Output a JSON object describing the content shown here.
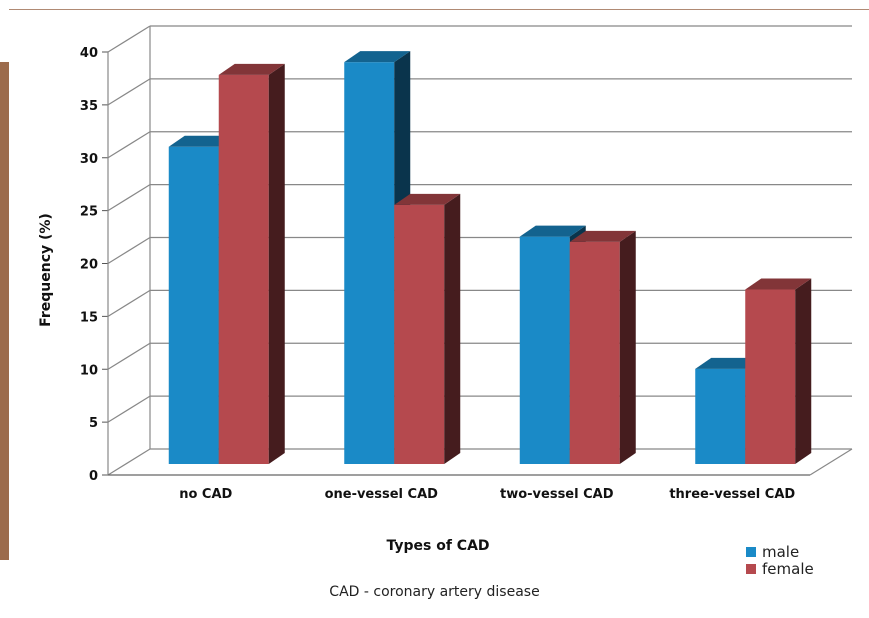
{
  "chart_data": {
    "type": "bar",
    "three_d": true,
    "categories": [
      "no CAD",
      "one-vessel CAD",
      "two-vessel CAD",
      "three-vessel CAD"
    ],
    "series": [
      {
        "name": "male",
        "values": [
          30,
          38,
          21.5,
          9
        ]
      },
      {
        "name": "female",
        "values": [
          36.8,
          24.5,
          21,
          16.5
        ]
      }
    ],
    "title": "",
    "xlabel": "Types of CAD",
    "ylabel": "Frequency (%)",
    "ylim": [
      0,
      40
    ],
    "yticks": [
      0,
      5,
      10,
      15,
      20,
      25,
      30,
      35,
      40
    ],
    "grid": true,
    "legend_position": "bottom-right",
    "colors": {
      "male": "#1a8ac7",
      "female": "#b5494e"
    }
  },
  "caption": "CAD - coronary artery disease"
}
